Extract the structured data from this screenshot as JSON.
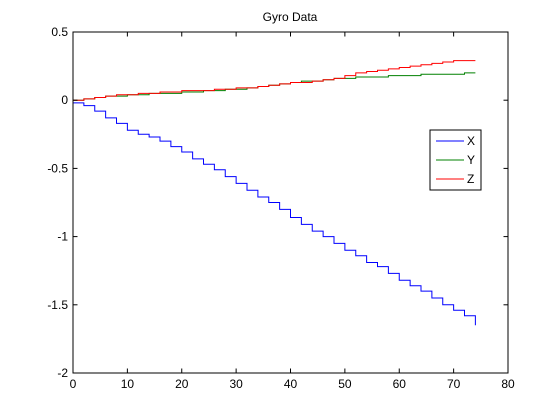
{
  "chart_data": {
    "type": "line",
    "title": "Gyro Data",
    "xlabel": "",
    "ylabel": "",
    "xlim": [
      0,
      80
    ],
    "ylim": [
      -2,
      0.5
    ],
    "x_ticks": [
      0,
      10,
      20,
      30,
      40,
      50,
      60,
      70,
      80
    ],
    "y_ticks": [
      -2,
      -1.5,
      -1,
      -0.5,
      0,
      0.5
    ],
    "grid": false,
    "legend_position": "right",
    "series": [
      {
        "name": "X",
        "color": "#0000ff",
        "x": [
          0,
          2,
          4,
          6,
          8,
          10,
          12,
          14,
          16,
          18,
          20,
          22,
          24,
          26,
          28,
          30,
          32,
          34,
          36,
          38,
          40,
          42,
          44,
          46,
          48,
          50,
          52,
          54,
          56,
          58,
          60,
          62,
          64,
          66,
          68,
          70,
          72,
          74
        ],
        "y": [
          -0.02,
          -0.04,
          -0.08,
          -0.13,
          -0.17,
          -0.22,
          -0.25,
          -0.27,
          -0.3,
          -0.34,
          -0.38,
          -0.43,
          -0.47,
          -0.51,
          -0.56,
          -0.61,
          -0.66,
          -0.71,
          -0.75,
          -0.8,
          -0.86,
          -0.91,
          -0.96,
          -1.0,
          -1.05,
          -1.1,
          -1.14,
          -1.19,
          -1.22,
          -1.27,
          -1.32,
          -1.36,
          -1.4,
          -1.45,
          -1.5,
          -1.54,
          -1.58,
          -1.65
        ]
      },
      {
        "name": "Y",
        "color": "#008000",
        "x": [
          0,
          2,
          4,
          6,
          8,
          10,
          12,
          14,
          16,
          18,
          20,
          22,
          24,
          26,
          28,
          30,
          32,
          34,
          36,
          38,
          40,
          42,
          44,
          46,
          48,
          50,
          52,
          54,
          56,
          58,
          60,
          62,
          64,
          66,
          68,
          70,
          72,
          74
        ],
        "y": [
          0.0,
          0.01,
          0.02,
          0.03,
          0.03,
          0.04,
          0.04,
          0.05,
          0.05,
          0.05,
          0.06,
          0.06,
          0.07,
          0.07,
          0.08,
          0.08,
          0.09,
          0.1,
          0.11,
          0.12,
          0.13,
          0.14,
          0.14,
          0.15,
          0.16,
          0.16,
          0.17,
          0.17,
          0.17,
          0.18,
          0.18,
          0.18,
          0.19,
          0.19,
          0.19,
          0.19,
          0.2,
          0.2
        ]
      },
      {
        "name": "Z",
        "color": "#ff0000",
        "x": [
          0,
          2,
          4,
          6,
          8,
          10,
          12,
          14,
          16,
          18,
          20,
          22,
          24,
          26,
          28,
          30,
          32,
          34,
          36,
          38,
          40,
          42,
          44,
          46,
          48,
          50,
          52,
          54,
          56,
          58,
          60,
          62,
          64,
          66,
          68,
          70,
          72,
          74
        ],
        "y": [
          0.0,
          0.01,
          0.02,
          0.03,
          0.04,
          0.04,
          0.05,
          0.05,
          0.06,
          0.06,
          0.07,
          0.07,
          0.07,
          0.08,
          0.08,
          0.09,
          0.09,
          0.1,
          0.11,
          0.12,
          0.13,
          0.13,
          0.14,
          0.15,
          0.16,
          0.18,
          0.2,
          0.21,
          0.22,
          0.23,
          0.24,
          0.25,
          0.26,
          0.27,
          0.28,
          0.29,
          0.29,
          0.29
        ]
      }
    ]
  }
}
